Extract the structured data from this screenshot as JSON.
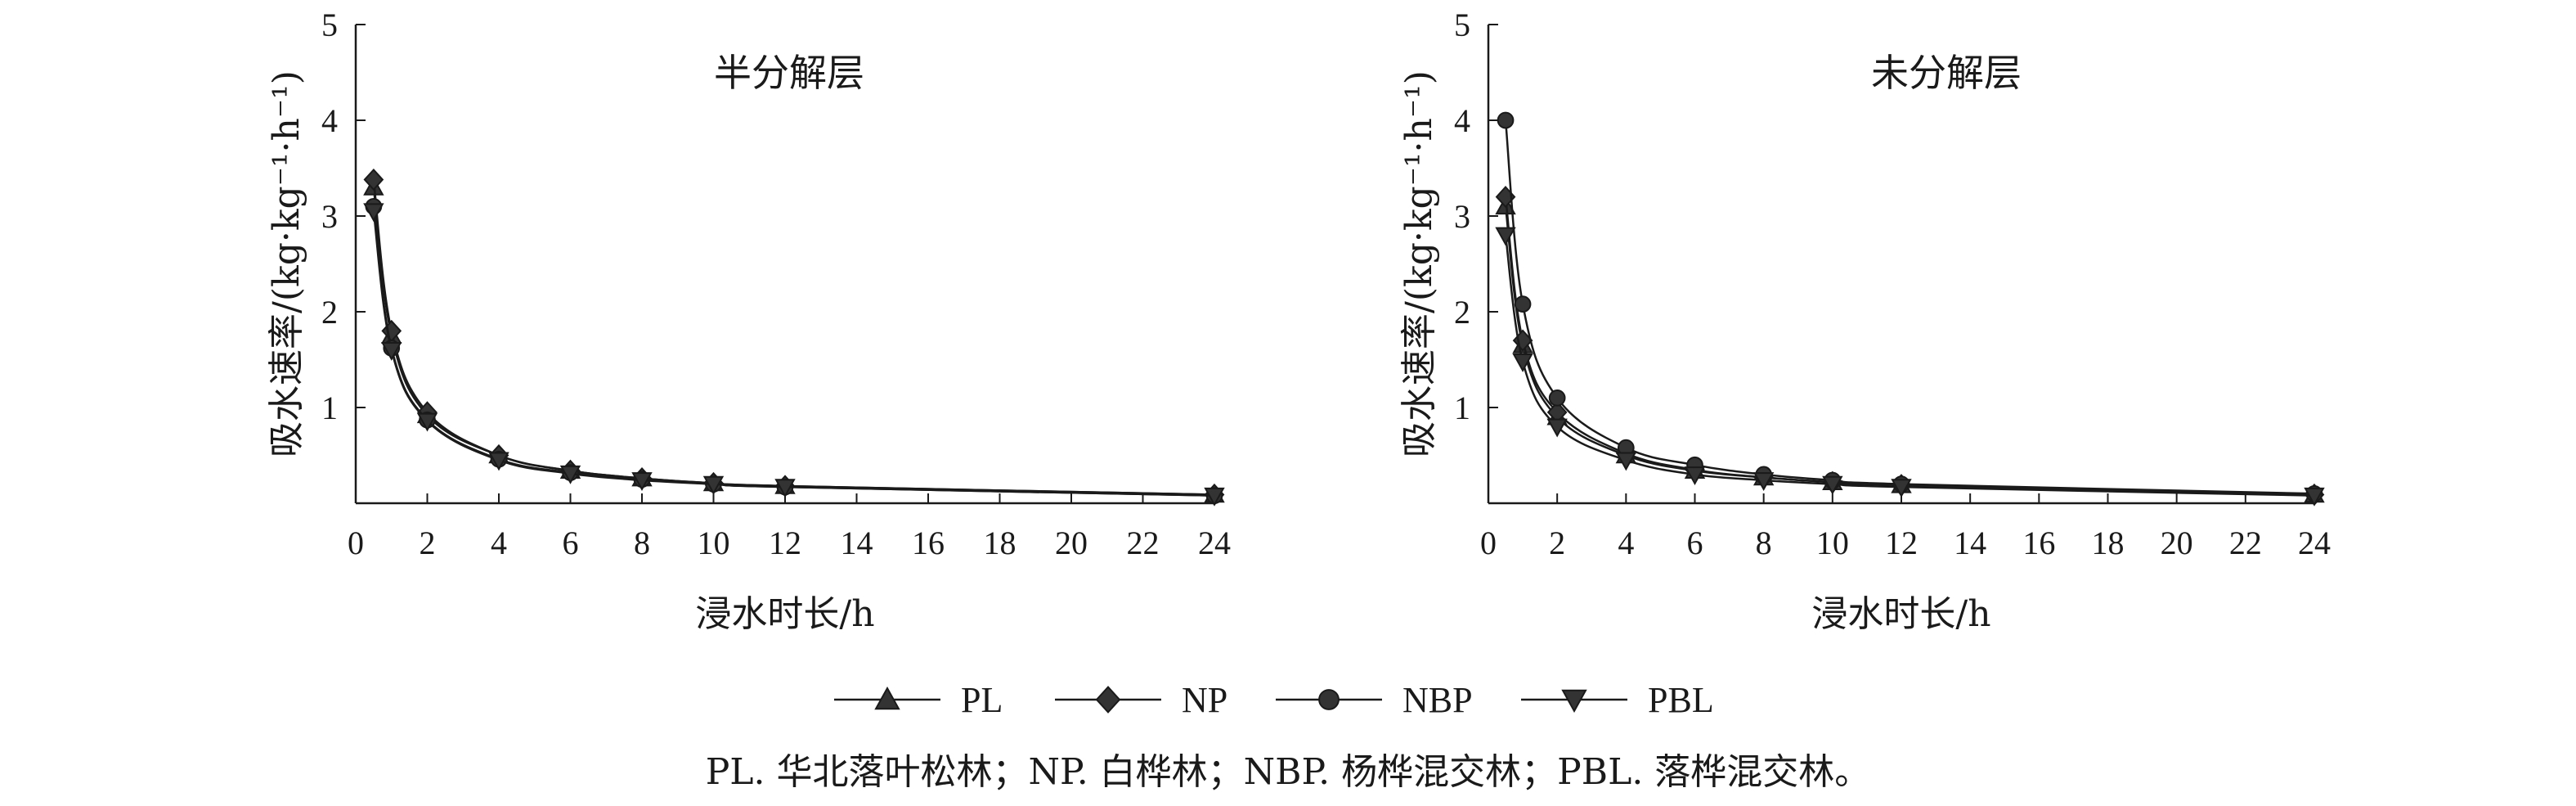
{
  "chart_data": [
    {
      "type": "line",
      "title": "半分解层",
      "xlabel": "浸水时长/h",
      "ylabel": "吸水速率/(kg·kg⁻¹·h⁻¹)",
      "x_ticks": [
        "0",
        "2",
        "4",
        "6",
        "8",
        "10",
        "12",
        "14",
        "16",
        "18",
        "20",
        "22",
        "24"
      ],
      "y_ticks": [
        "1",
        "2",
        "3",
        "4",
        "5"
      ],
      "xlim": [
        0,
        24
      ],
      "ylim": [
        0,
        5
      ],
      "x": [
        0.5,
        1,
        2,
        4,
        6,
        8,
        10,
        12,
        24
      ],
      "series": [
        {
          "name": "PL",
          "values": [
            3.3,
            1.75,
            0.92,
            0.5,
            0.34,
            0.26,
            0.21,
            0.18,
            0.09
          ]
        },
        {
          "name": "NP",
          "values": [
            3.38,
            1.8,
            0.95,
            0.5,
            0.34,
            0.26,
            0.21,
            0.18,
            0.09
          ]
        },
        {
          "name": "NBP",
          "values": [
            3.1,
            1.62,
            0.87,
            0.46,
            0.32,
            0.25,
            0.2,
            0.17,
            0.08
          ]
        },
        {
          "name": "PBL",
          "values": [
            3.05,
            1.6,
            0.86,
            0.45,
            0.31,
            0.24,
            0.2,
            0.17,
            0.08
          ]
        }
      ]
    },
    {
      "type": "line",
      "title": "未分解层",
      "xlabel": "浸水时长/h",
      "ylabel": "吸水速率/(kg·kg⁻¹·h⁻¹)",
      "x_ticks": [
        "0",
        "2",
        "4",
        "6",
        "8",
        "10",
        "12",
        "14",
        "16",
        "18",
        "20",
        "22",
        "24"
      ],
      "y_ticks": [
        "1",
        "2",
        "3",
        "4",
        "5"
      ],
      "xlim": [
        0,
        24
      ],
      "ylim": [
        0,
        5
      ],
      "x": [
        0.5,
        1,
        2,
        4,
        6,
        8,
        10,
        12,
        24
      ],
      "series": [
        {
          "name": "PL",
          "values": [
            3.1,
            1.65,
            0.9,
            0.5,
            0.34,
            0.27,
            0.22,
            0.19,
            0.09
          ]
        },
        {
          "name": "NP",
          "values": [
            3.2,
            1.7,
            0.95,
            0.52,
            0.35,
            0.27,
            0.22,
            0.19,
            0.09
          ]
        },
        {
          "name": "NBP",
          "values": [
            4.0,
            2.08,
            1.1,
            0.58,
            0.4,
            0.3,
            0.24,
            0.2,
            0.1
          ]
        },
        {
          "name": "PBL",
          "values": [
            2.8,
            1.48,
            0.8,
            0.45,
            0.3,
            0.24,
            0.2,
            0.17,
            0.08
          ]
        }
      ]
    }
  ],
  "legend": {
    "items": [
      {
        "label": "PL",
        "marker": "triangle-up"
      },
      {
        "label": "NP",
        "marker": "diamond"
      },
      {
        "label": "NBP",
        "marker": "circle"
      },
      {
        "label": "PBL",
        "marker": "triangle-down"
      }
    ],
    "placement": "bottom-center"
  },
  "caption": "PL. 华北落叶松林；NP. 白桦林；NBP. 杨桦混交林；PBL. 落桦混交林。",
  "colors": {
    "line": "#1a1a1a",
    "marker": "#333333",
    "background": "#ffffff"
  }
}
